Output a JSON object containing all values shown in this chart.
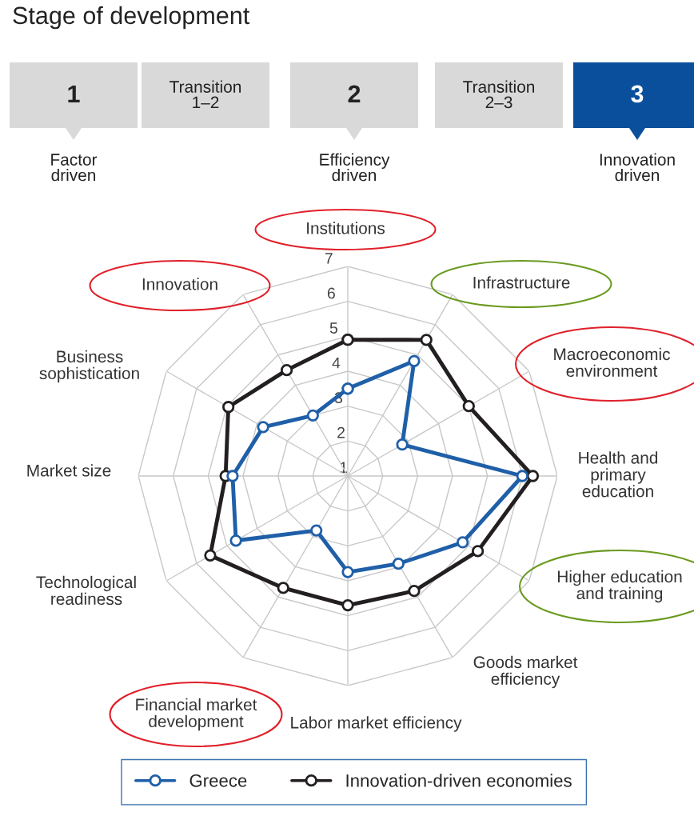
{
  "chart_data": {
    "type": "radar",
    "title": "Stage of development",
    "categories": [
      "Institutions",
      "Infrastructure",
      "Macroeconomic\nenvironment",
      "Health and\nprimary\neducation",
      "Higher education\nand training",
      "Goods market\nefficiency",
      "Labor market efficiency",
      "Financial market\ndevelopment",
      "Technological\nreadiness",
      "Market size",
      "Business\nsophistication",
      "Innovation"
    ],
    "series": [
      {
        "name": "Greece",
        "color": "#1f5fa8",
        "values": [
          3.5,
          4.8,
          2.8,
          6.0,
          4.8,
          3.9,
          3.75,
          2.8,
          4.7,
          4.3,
          3.8,
          3.0
        ]
      },
      {
        "name": "Innovation-driven economies",
        "color": "#231f20",
        "values": [
          4.9,
          5.5,
          5.0,
          6.3,
          5.3,
          4.8,
          4.7,
          4.7,
          5.55,
          4.5,
          4.95,
          4.5
        ]
      }
    ],
    "ylim": [
      1,
      7
    ],
    "yticks": [
      1,
      2,
      3,
      4,
      5,
      6,
      7
    ],
    "marker": "circle",
    "legend": "bottom",
    "grid": true,
    "annotations": [
      "1",
      "Transition\n1–2",
      "2",
      "Transition\n2–3",
      "3",
      "Factor\ndriven",
      "Efficiency\ndriven",
      "Innovation\ndriven"
    ]
  }
}
